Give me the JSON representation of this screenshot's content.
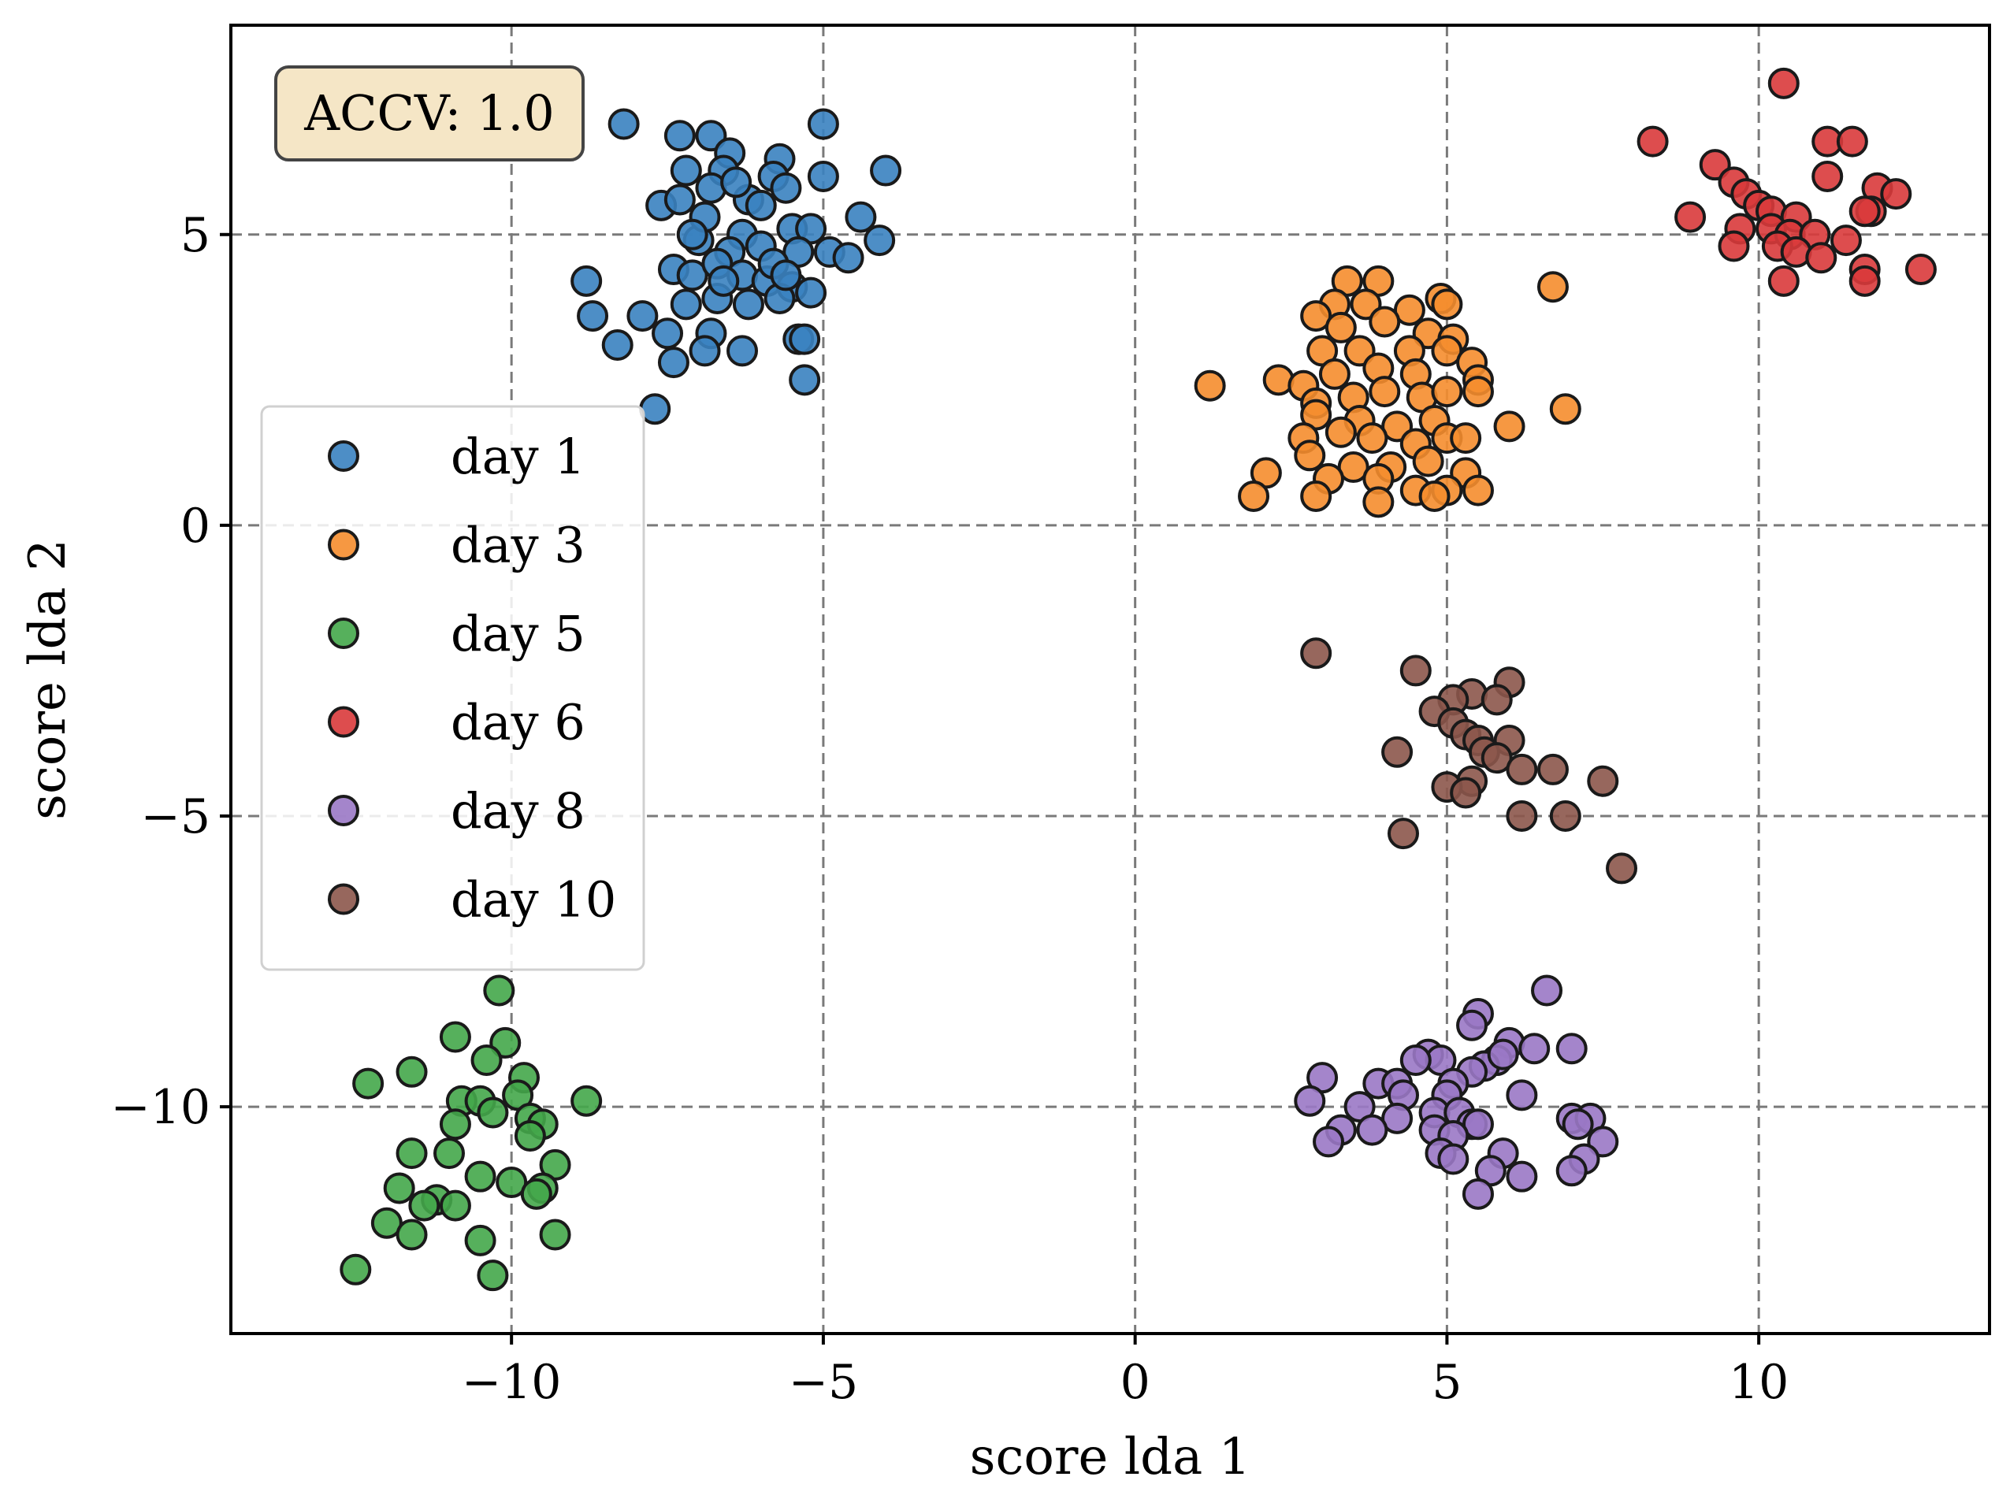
{
  "chart_data": {
    "type": "scatter",
    "xlabel": "score lda 1",
    "ylabel": "score lda 2",
    "xlim": [
      -14.5,
      13.7
    ],
    "ylim": [
      -13.9,
      8.6
    ],
    "xticks": [
      -10,
      -5,
      0,
      5,
      10
    ],
    "yticks": [
      5,
      0,
      -5,
      -10
    ],
    "xtick_labels": [
      "−10",
      "−5",
      "0",
      "5",
      "10"
    ],
    "ytick_labels": [
      "5",
      "0",
      "−5",
      "−10"
    ],
    "grid": true,
    "legend_position": "upper-left",
    "annotation": "ACCV: 1.0",
    "series": [
      {
        "name": "day 1",
        "color": "#3a82c0",
        "points": [
          [
            -8.2,
            6.9
          ],
          [
            -7.3,
            6.7
          ],
          [
            -6.8,
            6.7
          ],
          [
            -6.5,
            6.4
          ],
          [
            -5.7,
            6.3
          ],
          [
            -5,
            6.9
          ],
          [
            -4,
            6.1
          ],
          [
            -7.2,
            6.1
          ],
          [
            -6.6,
            6.1
          ],
          [
            -5.8,
            6.0
          ],
          [
            -5,
            6.0
          ],
          [
            -7.6,
            5.5
          ],
          [
            -7.3,
            5.6
          ],
          [
            -6.8,
            5.8
          ],
          [
            -6.2,
            5.6
          ],
          [
            -5.6,
            5.8
          ],
          [
            -4.4,
            5.3
          ],
          [
            -6.3,
            5.0
          ],
          [
            -5.5,
            5.1
          ],
          [
            -5.2,
            5.1
          ],
          [
            -7.0,
            4.9
          ],
          [
            -6.5,
            4.7
          ],
          [
            -6.0,
            4.8
          ],
          [
            -5.4,
            4.7
          ],
          [
            -4.9,
            4.7
          ],
          [
            -4.1,
            4.9
          ],
          [
            -8.8,
            4.2
          ],
          [
            -7.4,
            4.4
          ],
          [
            -7.1,
            4.3
          ],
          [
            -6.7,
            4.5
          ],
          [
            -6.3,
            4.3
          ],
          [
            -5.9,
            4.2
          ],
          [
            -5.5,
            4.1
          ],
          [
            -5.2,
            4.0
          ],
          [
            -7.2,
            3.8
          ],
          [
            -6.7,
            3.9
          ],
          [
            -6.2,
            3.8
          ],
          [
            -5.7,
            3.9
          ],
          [
            -8.7,
            3.6
          ],
          [
            -7.9,
            3.6
          ],
          [
            -7.5,
            3.3
          ],
          [
            -6.8,
            3.3
          ],
          [
            -6.3,
            3.0
          ],
          [
            -5.4,
            3.2
          ],
          [
            -5.3,
            3.2
          ],
          [
            -8.3,
            3.1
          ],
          [
            -7.4,
            2.8
          ],
          [
            -6.9,
            3.0
          ],
          [
            -5.3,
            2.5
          ],
          [
            -7.7,
            2.0
          ],
          [
            -4.6,
            4.6
          ],
          [
            -6.9,
            5.3
          ],
          [
            -6.0,
            5.5
          ],
          [
            -5.8,
            4.5
          ],
          [
            -6.6,
            4.2
          ],
          [
            -7.1,
            5.0
          ],
          [
            -6.4,
            5.9
          ],
          [
            -5.6,
            4.3
          ]
        ]
      },
      {
        "name": "day 3",
        "color": "#f58d2d",
        "points": [
          [
            3.4,
            4.2
          ],
          [
            3.9,
            4.2
          ],
          [
            4.9,
            3.9
          ],
          [
            6.7,
            4.1
          ],
          [
            3.2,
            3.8
          ],
          [
            3.7,
            3.8
          ],
          [
            4.4,
            3.7
          ],
          [
            5.0,
            3.8
          ],
          [
            2.9,
            3.6
          ],
          [
            3.3,
            3.4
          ],
          [
            4.0,
            3.5
          ],
          [
            4.7,
            3.3
          ],
          [
            5.1,
            3.2
          ],
          [
            3.0,
            3.0
          ],
          [
            3.6,
            3.0
          ],
          [
            4.4,
            3.0
          ],
          [
            5.0,
            3.0
          ],
          [
            5.4,
            2.8
          ],
          [
            2.3,
            2.5
          ],
          [
            2.7,
            2.4
          ],
          [
            3.2,
            2.6
          ],
          [
            3.9,
            2.7
          ],
          [
            4.5,
            2.6
          ],
          [
            5.5,
            2.5
          ],
          [
            1.2,
            2.4
          ],
          [
            2.9,
            2.1
          ],
          [
            3.5,
            2.2
          ],
          [
            4.0,
            2.3
          ],
          [
            4.6,
            2.2
          ],
          [
            5.0,
            2.3
          ],
          [
            5.5,
            2.3
          ],
          [
            2.9,
            1.9
          ],
          [
            3.6,
            1.8
          ],
          [
            4.2,
            1.7
          ],
          [
            4.8,
            1.8
          ],
          [
            6.0,
            1.7
          ],
          [
            6.9,
            2.0
          ],
          [
            2.7,
            1.5
          ],
          [
            3.3,
            1.6
          ],
          [
            3.8,
            1.5
          ],
          [
            4.5,
            1.4
          ],
          [
            5.0,
            1.5
          ],
          [
            5.3,
            1.5
          ],
          [
            2.8,
            1.2
          ],
          [
            3.5,
            1.0
          ],
          [
            4.1,
            1.0
          ],
          [
            4.7,
            1.1
          ],
          [
            5.3,
            0.9
          ],
          [
            2.1,
            0.9
          ],
          [
            3.1,
            0.8
          ],
          [
            3.9,
            0.8
          ],
          [
            4.5,
            0.6
          ],
          [
            5.0,
            0.6
          ],
          [
            1.9,
            0.5
          ],
          [
            2.9,
            0.5
          ],
          [
            3.9,
            0.4
          ],
          [
            4.8,
            0.5
          ],
          [
            5.5,
            0.6
          ]
        ]
      },
      {
        "name": "day 5",
        "color": "#44a74a",
        "points": [
          [
            -10.2,
            -8.0
          ],
          [
            -10.9,
            -8.8
          ],
          [
            -10.1,
            -8.9
          ],
          [
            -11.6,
            -9.4
          ],
          [
            -10.4,
            -9.2
          ],
          [
            -9.8,
            -9.5
          ],
          [
            -12.3,
            -9.6
          ],
          [
            -9.9,
            -9.8
          ],
          [
            -10.8,
            -9.9
          ],
          [
            -10.5,
            -9.9
          ],
          [
            -8.8,
            -9.9
          ],
          [
            -10.3,
            -10.1
          ],
          [
            -9.7,
            -10.2
          ],
          [
            -10.9,
            -10.3
          ],
          [
            -9.5,
            -10.3
          ],
          [
            -9.7,
            -10.5
          ],
          [
            -11.6,
            -10.8
          ],
          [
            -11.0,
            -10.8
          ],
          [
            -9.3,
            -11.0
          ],
          [
            -10.5,
            -11.2
          ],
          [
            -10.0,
            -11.3
          ],
          [
            -9.5,
            -11.4
          ],
          [
            -9.6,
            -11.5
          ],
          [
            -11.8,
            -11.4
          ],
          [
            -11.2,
            -11.6
          ],
          [
            -11.4,
            -11.7
          ],
          [
            -10.9,
            -11.7
          ],
          [
            -12.0,
            -12.0
          ],
          [
            -11.6,
            -12.2
          ],
          [
            -10.5,
            -12.3
          ],
          [
            -9.3,
            -12.2
          ],
          [
            -12.5,
            -12.8
          ],
          [
            -10.3,
            -12.9
          ]
        ]
      },
      {
        "name": "day 6",
        "color": "#d93a3b",
        "points": [
          [
            10.4,
            7.6
          ],
          [
            8.3,
            6.6
          ],
          [
            11.1,
            6.6
          ],
          [
            11.5,
            6.6
          ],
          [
            9.3,
            6.2
          ],
          [
            11.1,
            6.0
          ],
          [
            9.6,
            5.9
          ],
          [
            9.8,
            5.7
          ],
          [
            11.9,
            5.8
          ],
          [
            12.2,
            5.7
          ],
          [
            10.0,
            5.5
          ],
          [
            10.2,
            5.4
          ],
          [
            10.6,
            5.3
          ],
          [
            11.8,
            5.4
          ],
          [
            11.7,
            5.4
          ],
          [
            8.9,
            5.3
          ],
          [
            9.7,
            5.1
          ],
          [
            10.2,
            5.1
          ],
          [
            10.5,
            5.0
          ],
          [
            10.9,
            5.0
          ],
          [
            11.4,
            4.9
          ],
          [
            9.6,
            4.8
          ],
          [
            10.3,
            4.8
          ],
          [
            10.6,
            4.7
          ],
          [
            11.0,
            4.6
          ],
          [
            11.7,
            4.4
          ],
          [
            12.6,
            4.4
          ],
          [
            10.4,
            4.2
          ],
          [
            11.7,
            4.2
          ]
        ]
      },
      {
        "name": "day 8",
        "color": "#9a78c5",
        "points": [
          [
            6.6,
            -8.0
          ],
          [
            5.5,
            -8.4
          ],
          [
            5.4,
            -8.6
          ],
          [
            6.0,
            -8.9
          ],
          [
            6.4,
            -9.0
          ],
          [
            7.0,
            -9.0
          ],
          [
            4.7,
            -9.1
          ],
          [
            4.9,
            -9.2
          ],
          [
            4.5,
            -9.2
          ],
          [
            5.8,
            -9.2
          ],
          [
            5.6,
            -9.3
          ],
          [
            5.9,
            -9.1
          ],
          [
            5.4,
            -9.4
          ],
          [
            3.0,
            -9.5
          ],
          [
            5.1,
            -9.6
          ],
          [
            3.9,
            -9.6
          ],
          [
            4.2,
            -9.6
          ],
          [
            4.3,
            -9.8
          ],
          [
            5.0,
            -9.8
          ],
          [
            6.2,
            -9.8
          ],
          [
            2.8,
            -9.9
          ],
          [
            3.6,
            -10.0
          ],
          [
            4.8,
            -10.1
          ],
          [
            5.2,
            -10.1
          ],
          [
            4.2,
            -10.2
          ],
          [
            7.0,
            -10.2
          ],
          [
            5.4,
            -10.3
          ],
          [
            5.5,
            -10.3
          ],
          [
            3.3,
            -10.4
          ],
          [
            7.3,
            -10.2
          ],
          [
            3.8,
            -10.4
          ],
          [
            4.8,
            -10.4
          ],
          [
            7.1,
            -10.3
          ],
          [
            5.1,
            -10.5
          ],
          [
            3.1,
            -10.6
          ],
          [
            7.5,
            -10.6
          ],
          [
            4.9,
            -10.8
          ],
          [
            5.9,
            -10.8
          ],
          [
            5.1,
            -10.9
          ],
          [
            7.2,
            -10.9
          ],
          [
            7.0,
            -11.1
          ],
          [
            5.7,
            -11.1
          ],
          [
            6.2,
            -11.2
          ],
          [
            5.5,
            -11.5
          ]
        ]
      },
      {
        "name": "day 10",
        "color": "#8c564b",
        "points": [
          [
            2.9,
            -2.2
          ],
          [
            4.5,
            -2.5
          ],
          [
            6.0,
            -2.7
          ],
          [
            5.4,
            -2.9
          ],
          [
            5.1,
            -3.0
          ],
          [
            5.8,
            -3.0
          ],
          [
            4.8,
            -3.2
          ],
          [
            5.1,
            -3.4
          ],
          [
            5.3,
            -3.6
          ],
          [
            5.5,
            -3.7
          ],
          [
            6.0,
            -3.7
          ],
          [
            5.6,
            -3.9
          ],
          [
            4.2,
            -3.9
          ],
          [
            5.8,
            -4.0
          ],
          [
            6.2,
            -4.2
          ],
          [
            6.7,
            -4.2
          ],
          [
            7.5,
            -4.4
          ],
          [
            5.4,
            -4.4
          ],
          [
            5.0,
            -4.5
          ],
          [
            5.3,
            -4.6
          ],
          [
            6.2,
            -5.0
          ],
          [
            6.9,
            -5.0
          ],
          [
            4.3,
            -5.3
          ],
          [
            7.8,
            -5.9
          ]
        ]
      }
    ]
  }
}
